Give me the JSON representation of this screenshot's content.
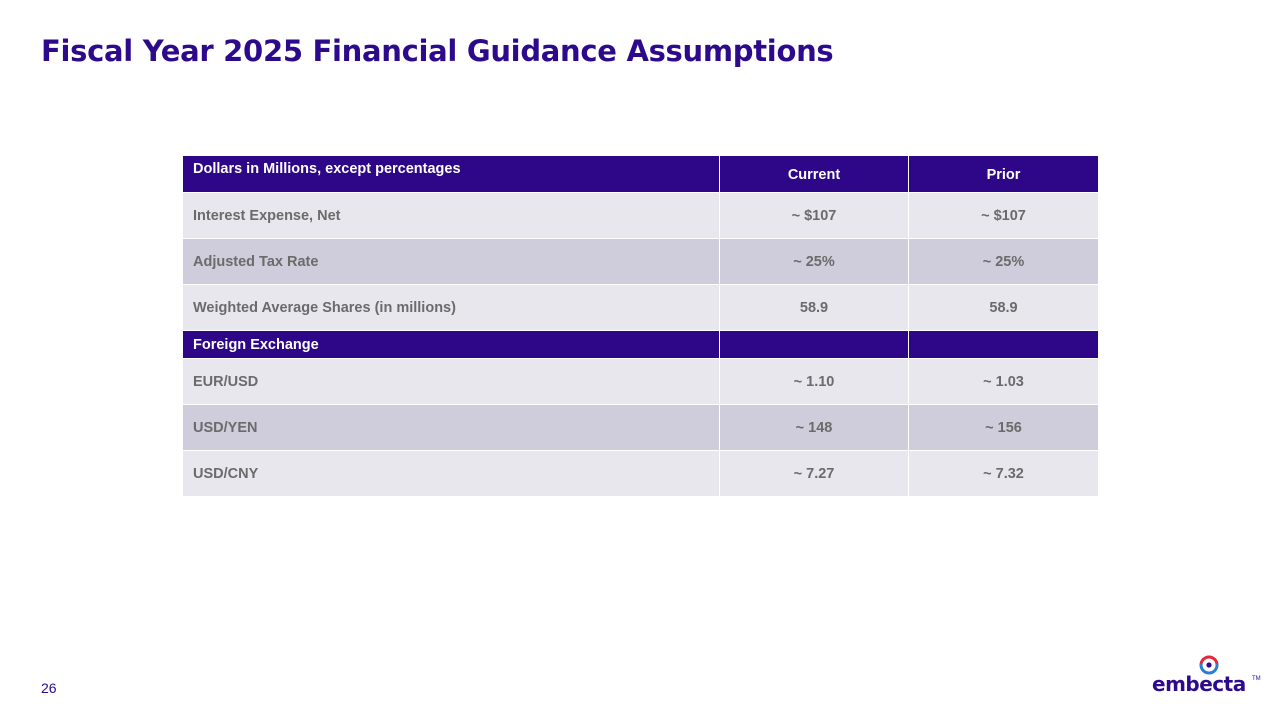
{
  "title": "Fiscal Year 2025 Financial Guidance Assumptions",
  "table": {
    "header": {
      "label": "Dollars in Millions, except percentages",
      "current": "Current",
      "prior": "Prior"
    },
    "rows": [
      {
        "label": "Interest Expense, Net",
        "current": "~ $107",
        "prior": "~ $107"
      },
      {
        "label": "Adjusted Tax Rate",
        "current": "~ 25%",
        "prior": "~ 25%"
      },
      {
        "label": "Weighted Average Shares (in millions)",
        "current": "58.9",
        "prior": "58.9"
      }
    ],
    "section": {
      "label": "Foreign Exchange"
    },
    "fx_rows": [
      {
        "label": "EUR/USD",
        "current": "~ 1.10",
        "prior": "~ 1.03"
      },
      {
        "label": "USD/YEN",
        "current": "~ 148",
        "prior": "~ 156"
      },
      {
        "label": "USD/CNY",
        "current": "~ 7.27",
        "prior": "~ 7.32"
      }
    ]
  },
  "footer": {
    "page_number": "26",
    "logo_text": "embecta",
    "logo_tm": "TM"
  },
  "colors": {
    "brand_purple": "#2d0a8c",
    "header_fill": "#2d0787",
    "row_light": "#e8e7ee",
    "row_dark": "#cfccdb",
    "logo_red": "#e5273a",
    "logo_blue": "#2a7fd4"
  },
  "icons": {
    "logo_mark": "embecta-ring-icon"
  }
}
